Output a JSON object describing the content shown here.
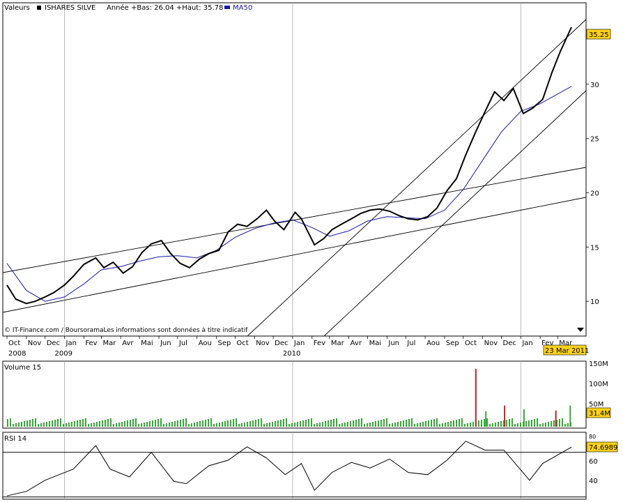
{
  "colors": {
    "price": "#000000",
    "ma": "#1a1aa8",
    "vol_up": "#33aa33",
    "vol_down": "#bb2222",
    "label_bg": "#ffd21a",
    "grid": "#a8a8a8"
  },
  "header": {
    "label": "Valeurs",
    "name": "ISHARES SILVE",
    "info": "Année +Bas: 26.04 +Haut: 35.78",
    "ma_legend": "MA50"
  },
  "footer_note": "© IT-Finance.com / BoursoramaLes informations sont données à titre indicatif",
  "last_price_label": "35.25",
  "date_label": "23 Mar 2011",
  "months": [
    "Oct",
    "Nov",
    "Dec",
    "Jan",
    "Fev",
    "Mar",
    "Avr",
    "Mai",
    "Jun",
    "Jul",
    "Aou",
    "Sep",
    "Oct",
    "Nov",
    "Dec",
    "Jan",
    "Fev",
    "Mar",
    "Avr",
    "Mai",
    "Jun",
    "Jul",
    "Aou",
    "Sep",
    "Oct",
    "Nov",
    "Dec",
    "Jan",
    "Fev",
    "Mar"
  ],
  "years": [
    "2008",
    "2009",
    "2010"
  ],
  "volume": {
    "title": "Volume 15",
    "ticks": [
      "150M",
      "100M",
      "50M"
    ],
    "last_label": "31.4M"
  },
  "rsi": {
    "title": "RSI 14",
    "ticks": [
      "80",
      "60",
      "40"
    ],
    "last_label": "74.6989"
  },
  "chart_data": [
    {
      "type": "line",
      "title": "ISHARES SILVE",
      "y_ticks": [
        10,
        15,
        20,
        25,
        30
      ],
      "ylim": [
        6.8,
        37.5
      ],
      "x_range": [
        "2008-10-01",
        "2011-03-23"
      ],
      "scale": "linear",
      "grid": true,
      "series": [
        {
          "name": "ISHARES SILVE",
          "x": [
            "2008-10-01",
            "2008-10-15",
            "2008-11-01",
            "2008-11-15",
            "2008-12-01",
            "2008-12-15",
            "2009-01-01",
            "2009-01-15",
            "2009-02-01",
            "2009-02-20",
            "2009-03-05",
            "2009-03-20",
            "2009-04-05",
            "2009-04-20",
            "2009-05-05",
            "2009-05-20",
            "2009-06-05",
            "2009-06-20",
            "2009-07-05",
            "2009-07-20",
            "2009-08-05",
            "2009-08-20",
            "2009-09-05",
            "2009-09-20",
            "2009-10-05",
            "2009-10-20",
            "2009-11-05",
            "2009-11-20",
            "2009-12-03",
            "2009-12-18",
            "2010-01-05",
            "2010-01-15",
            "2010-02-05",
            "2010-02-20",
            "2010-03-05",
            "2010-03-20",
            "2010-04-05",
            "2010-04-20",
            "2010-05-05",
            "2010-05-20",
            "2010-06-05",
            "2010-06-20",
            "2010-07-05",
            "2010-07-20",
            "2010-08-05",
            "2010-08-20",
            "2010-09-05",
            "2010-09-20",
            "2010-10-05",
            "2010-10-20",
            "2010-11-05",
            "2010-11-20",
            "2010-12-05",
            "2010-12-20",
            "2011-01-05",
            "2011-01-20",
            "2011-02-05",
            "2011-02-20",
            "2011-03-05",
            "2011-03-23"
          ],
          "values": [
            11.5,
            10.2,
            9.8,
            10.0,
            10.4,
            10.8,
            11.5,
            12.3,
            13.4,
            14.0,
            13.1,
            13.6,
            12.6,
            13.2,
            14.5,
            15.3,
            15.6,
            14.4,
            13.5,
            13.1,
            13.9,
            14.4,
            14.7,
            16.4,
            17.1,
            16.9,
            17.6,
            18.4,
            17.4,
            16.6,
            18.2,
            17.6,
            15.2,
            15.8,
            16.6,
            17.1,
            17.6,
            18.1,
            18.4,
            18.5,
            18.3,
            17.9,
            17.6,
            17.5,
            17.8,
            18.6,
            20.2,
            21.3,
            23.5,
            25.5,
            27.5,
            29.3,
            28.5,
            29.6,
            27.3,
            27.8,
            28.6,
            31.1,
            33.0,
            35.25
          ]
        },
        {
          "name": "MA50",
          "x": [
            "2008-10-01",
            "2008-11-01",
            "2008-12-01",
            "2009-01-01",
            "2009-02-01",
            "2009-03-01",
            "2009-04-01",
            "2009-05-01",
            "2009-06-01",
            "2009-07-01",
            "2009-08-01",
            "2009-09-01",
            "2009-10-01",
            "2009-11-01",
            "2009-12-01",
            "2010-01-01",
            "2010-02-01",
            "2010-03-01",
            "2010-04-01",
            "2010-05-01",
            "2010-06-01",
            "2010-07-01",
            "2010-08-01",
            "2010-09-01",
            "2010-10-01",
            "2010-11-01",
            "2010-12-01",
            "2011-01-01",
            "2011-02-01",
            "2011-03-23"
          ],
          "values": [
            13.5,
            11.0,
            10.0,
            10.4,
            11.6,
            12.9,
            13.2,
            13.7,
            14.1,
            14.2,
            14.0,
            14.7,
            15.9,
            16.7,
            17.2,
            17.5,
            16.8,
            16.0,
            16.5,
            17.4,
            17.8,
            17.7,
            17.6,
            18.4,
            20.3,
            23.0,
            25.6,
            27.5,
            28.2,
            29.8
          ]
        }
      ]
    },
    {
      "type": "bar",
      "title": "Volume 15",
      "x_range": [
        "2008-10-01",
        "2011-03-23"
      ],
      "ylim": [
        0,
        170
      ],
      "unit": "M",
      "series": [
        {
          "name": "Volume 15",
          "x": [
            "2010-10-20",
            "2010-11-05",
            "2010-12-05",
            "2011-01-05",
            "2011-02-25",
            "2011-03-20"
          ],
          "values": [
            150,
            40,
            55,
            45,
            42,
            55
          ]
        }
      ]
    },
    {
      "type": "line",
      "title": "RSI 14",
      "ylim": [
        28,
        88
      ],
      "levels": [
        70,
        30
      ],
      "series": [
        {
          "name": "RSI 14",
          "x": [
            "2008-10-01",
            "2008-11-01",
            "2008-12-01",
            "2009-01-15",
            "2009-02-20",
            "2009-03-15",
            "2009-04-15",
            "2009-05-20",
            "2009-06-25",
            "2009-07-15",
            "2009-08-20",
            "2009-09-20",
            "2009-10-20",
            "2009-11-20",
            "2009-12-20",
            "2010-01-15",
            "2010-02-05",
            "2010-03-05",
            "2010-04-05",
            "2010-05-05",
            "2010-06-05",
            "2010-07-05",
            "2010-08-05",
            "2010-09-05",
            "2010-10-05",
            "2010-11-05",
            "2010-12-05",
            "2011-01-15",
            "2011-02-05",
            "2011-03-23"
          ],
          "values": [
            31,
            35,
            45,
            55,
            76,
            55,
            48,
            70,
            44,
            42,
            58,
            63,
            75,
            65,
            50,
            60,
            36,
            52,
            61,
            56,
            64,
            52,
            50,
            63,
            80,
            72,
            72,
            45,
            60,
            74.7
          ]
        }
      ]
    }
  ]
}
